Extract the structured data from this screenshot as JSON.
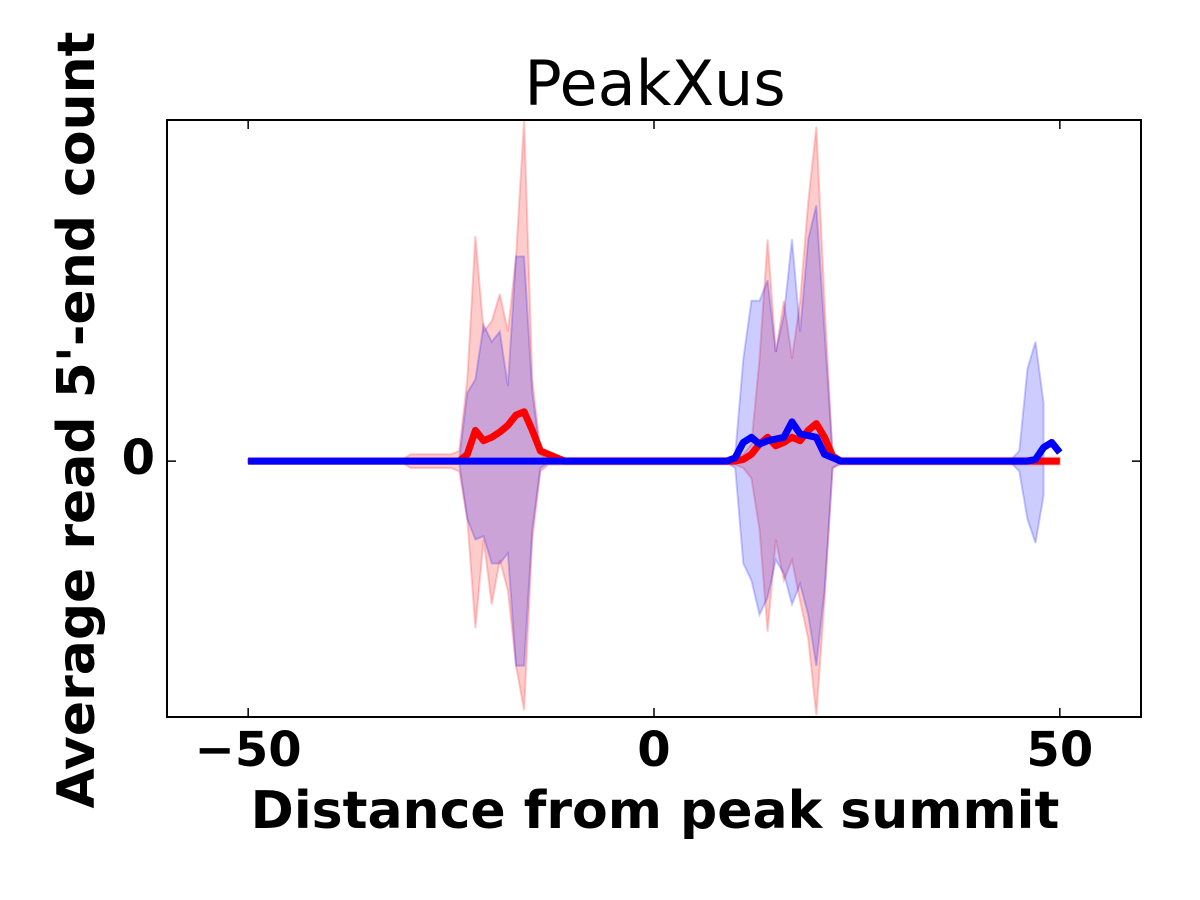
{
  "chart_data": {
    "type": "line",
    "title": "PeakXus",
    "xlabel": "Distance from peak summit",
    "ylabel": "Average read 5'-end count",
    "x": [
      -50,
      -49,
      -48,
      -47,
      -46,
      -45,
      -44,
      -43,
      -42,
      -41,
      -40,
      -39,
      -38,
      -37,
      -36,
      -35,
      -34,
      -33,
      -32,
      -31,
      -30,
      -29,
      -28,
      -27,
      -26,
      -25,
      -24,
      -23,
      -22,
      -21,
      -20,
      -19,
      -18,
      -17,
      -16,
      -15,
      -14,
      -13,
      -12,
      -11,
      -10,
      -9,
      -8,
      -7,
      -6,
      -5,
      -4,
      -3,
      -2,
      -1,
      0,
      1,
      2,
      3,
      4,
      5,
      6,
      7,
      8,
      9,
      10,
      11,
      12,
      13,
      14,
      15,
      16,
      17,
      18,
      19,
      20,
      21,
      22,
      23,
      24,
      25,
      26,
      27,
      28,
      29,
      30,
      31,
      32,
      33,
      34,
      35,
      36,
      37,
      38,
      39,
      40,
      41,
      42,
      43,
      44,
      45,
      46,
      47,
      48,
      49,
      50
    ],
    "xlim": [
      -60,
      60
    ],
    "xticks": [
      {
        "value": -50,
        "label": "−50"
      },
      0,
      50
    ],
    "ylim": [
      -0.75,
      1.0
    ],
    "yticks": [
      0
    ],
    "series": [
      {
        "color": "#ff0000",
        "values": [
          0,
          0,
          0,
          0,
          0,
          0,
          0,
          0,
          0,
          0,
          0,
          0,
          0,
          0,
          0,
          0,
          0,
          0,
          0,
          0,
          0,
          0,
          0,
          0,
          0,
          0,
          0,
          0.02,
          0.09,
          0.06,
          0.07,
          0.085,
          0.105,
          0.135,
          0.145,
          0.09,
          0.03,
          0.02,
          0.01,
          0,
          0,
          0,
          0,
          0,
          0,
          0,
          0,
          0,
          0,
          0,
          0,
          0,
          0,
          0,
          0,
          0,
          0,
          0,
          0,
          0,
          0,
          0.005,
          0.02,
          0.05,
          0.07,
          0.045,
          0.055,
          0.07,
          0.06,
          0.09,
          0.11,
          0.07,
          0.015,
          0,
          0,
          0,
          0,
          0,
          0,
          0,
          0,
          0,
          0,
          0,
          0,
          0,
          0,
          0,
          0,
          0,
          0,
          0,
          0,
          0,
          0,
          0,
          0,
          0,
          0,
          0,
          0
        ],
        "upper": [
          0.005,
          0.005,
          0.005,
          0.005,
          0.005,
          0.005,
          0.005,
          0.005,
          0.005,
          0.005,
          0.005,
          0.005,
          0.005,
          0.005,
          0.005,
          0.005,
          0.005,
          0.005,
          0.005,
          0.005,
          0.02,
          0.02,
          0.02,
          0.02,
          0.02,
          0.02,
          0.03,
          0.24,
          0.66,
          0.38,
          0.41,
          0.49,
          0.38,
          0.6,
          1.0,
          0.24,
          0.03,
          0.01,
          0.01,
          0.01,
          0.01,
          0.01,
          0.01,
          0.01,
          0.01,
          0.01,
          0.01,
          0.01,
          0.01,
          0.01,
          0.01,
          0.01,
          0.01,
          0.01,
          0.01,
          0.01,
          0.01,
          0.01,
          0.01,
          0.01,
          0.01,
          0.02,
          0.05,
          0.3,
          0.65,
          0.32,
          0.47,
          0.3,
          0.47,
          0.76,
          0.98,
          0.47,
          0.02,
          0.01,
          0.01,
          0.01,
          0.01,
          0.01,
          0.01,
          0.01,
          0.01,
          0.01,
          0.01,
          0.01,
          0.01,
          0.01,
          0.01,
          0.01,
          0.01,
          0.01,
          0.01,
          0.01,
          0.01,
          0.01,
          0.01,
          0.01,
          0.01,
          0.01,
          0.01,
          0.01,
          0.01
        ],
        "lower": [
          -0.005,
          -0.005,
          -0.005,
          -0.005,
          -0.005,
          -0.005,
          -0.005,
          -0.005,
          -0.005,
          -0.005,
          -0.005,
          -0.005,
          -0.005,
          -0.005,
          -0.005,
          -0.005,
          -0.005,
          -0.005,
          -0.005,
          -0.005,
          -0.02,
          -0.02,
          -0.02,
          -0.02,
          -0.02,
          -0.02,
          -0.03,
          -0.17,
          -0.49,
          -0.23,
          -0.42,
          -0.29,
          -0.38,
          -0.6,
          -0.73,
          -0.23,
          -0.03,
          -0.01,
          -0.01,
          -0.01,
          -0.01,
          -0.01,
          -0.01,
          -0.01,
          -0.01,
          -0.01,
          -0.01,
          -0.01,
          -0.01,
          -0.01,
          -0.01,
          -0.01,
          -0.01,
          -0.01,
          -0.01,
          -0.01,
          -0.01,
          -0.01,
          -0.01,
          -0.01,
          -0.01,
          -0.02,
          -0.05,
          -0.2,
          -0.5,
          -0.23,
          -0.35,
          -0.29,
          -0.41,
          -0.52,
          -0.745,
          -0.41,
          -0.02,
          -0.01,
          -0.01,
          -0.01,
          -0.01,
          -0.01,
          -0.01,
          -0.01,
          -0.01,
          -0.01,
          -0.01,
          -0.01,
          -0.01,
          -0.01,
          -0.01,
          -0.01,
          -0.01,
          -0.01,
          -0.01,
          -0.01,
          -0.01,
          -0.01,
          -0.01,
          -0.01,
          -0.01,
          -0.01,
          -0.01,
          -0.01,
          -0.01
        ]
      },
      {
        "color": "#0000ff",
        "values": [
          0,
          0,
          0,
          0,
          0,
          0,
          0,
          0,
          0,
          0,
          0,
          0,
          0,
          0,
          0,
          0,
          0,
          0,
          0,
          0,
          0,
          0,
          0,
          0,
          0,
          0,
          0,
          0,
          0,
          0,
          0,
          0,
          0,
          0,
          0,
          0,
          0,
          0,
          0,
          0,
          0,
          0,
          0,
          0,
          0,
          0,
          0,
          0,
          0,
          0,
          0,
          0,
          0,
          0,
          0,
          0,
          0,
          0,
          0,
          0,
          0.01,
          0.055,
          0.07,
          0.05,
          0.06,
          0.065,
          0.07,
          0.115,
          0.08,
          0.075,
          0.07,
          0.02,
          0.01,
          0,
          0,
          0,
          0,
          0,
          0,
          0,
          0,
          0,
          0,
          0,
          0,
          0,
          0,
          0,
          0,
          0,
          0,
          0,
          0,
          0,
          0,
          0,
          0,
          0.005,
          0.04,
          0.055,
          0.025
        ],
        "upper": [
          0.005,
          0.005,
          0.005,
          0.005,
          0.005,
          0.005,
          0.005,
          0.005,
          0.005,
          0.005,
          0.005,
          0.005,
          0.005,
          0.005,
          0.005,
          0.005,
          0.005,
          0.005,
          0.005,
          0.005,
          0.005,
          0.005,
          0.005,
          0.005,
          0.005,
          0.005,
          0.005,
          0.2,
          0.24,
          0.4,
          0.35,
          0.38,
          0.22,
          0.6,
          0.6,
          0.2,
          0.02,
          0.005,
          0.005,
          0.005,
          0.005,
          0.005,
          0.005,
          0.005,
          0.005,
          0.005,
          0.005,
          0.005,
          0.005,
          0.005,
          0.005,
          0.005,
          0.005,
          0.005,
          0.005,
          0.005,
          0.005,
          0.005,
          0.005,
          0.005,
          0.02,
          0.3,
          0.47,
          0.47,
          0.53,
          0.32,
          0.43,
          0.65,
          0.38,
          0.65,
          0.75,
          0.38,
          0.02,
          0.005,
          0.005,
          0.005,
          0.005,
          0.005,
          0.005,
          0.005,
          0.005,
          0.005,
          0.005,
          0.005,
          0.005,
          0.005,
          0.005,
          0.005,
          0.005,
          0.005,
          0.005,
          0.005,
          0.005,
          0.005,
          0.005,
          0.03,
          0.27,
          0.35,
          0.17
        ],
        "lower": [
          -0.005,
          -0.005,
          -0.005,
          -0.005,
          -0.005,
          -0.005,
          -0.005,
          -0.005,
          -0.005,
          -0.005,
          -0.005,
          -0.005,
          -0.005,
          -0.005,
          -0.005,
          -0.005,
          -0.005,
          -0.005,
          -0.005,
          -0.005,
          -0.005,
          -0.005,
          -0.005,
          -0.005,
          -0.005,
          -0.005,
          -0.005,
          -0.17,
          -0.23,
          -0.22,
          -0.3,
          -0.3,
          -0.27,
          -0.6,
          -0.6,
          -0.2,
          -0.02,
          -0.005,
          -0.005,
          -0.005,
          -0.005,
          -0.005,
          -0.005,
          -0.005,
          -0.005,
          -0.005,
          -0.005,
          -0.005,
          -0.005,
          -0.005,
          -0.005,
          -0.005,
          -0.005,
          -0.005,
          -0.005,
          -0.005,
          -0.005,
          -0.005,
          -0.005,
          -0.005,
          -0.02,
          -0.3,
          -0.35,
          -0.45,
          -0.4,
          -0.29,
          -0.33,
          -0.42,
          -0.36,
          -0.45,
          -0.6,
          -0.38,
          -0.02,
          -0.005,
          -0.005,
          -0.005,
          -0.005,
          -0.005,
          -0.005,
          -0.005,
          -0.005,
          -0.005,
          -0.005,
          -0.005,
          -0.005,
          -0.005,
          -0.005,
          -0.005,
          -0.005,
          -0.005,
          -0.005,
          -0.005,
          -0.005,
          -0.005,
          -0.005,
          -0.03,
          -0.17,
          -0.24,
          -0.1
        ]
      }
    ]
  }
}
